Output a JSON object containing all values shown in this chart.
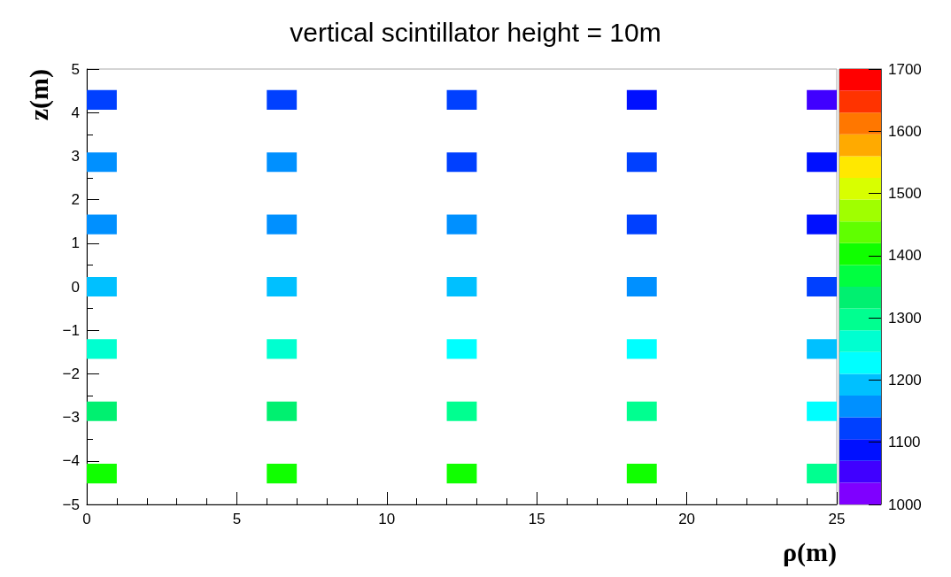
{
  "chart_data": {
    "type": "scatter",
    "title": "vertical scintillator height = 10m",
    "xlabel": "ρ(m)",
    "ylabel": "z(m)",
    "x": [
      0.5,
      6.5,
      12.5,
      18.5,
      24.5,
      0.5,
      6.5,
      12.5,
      18.5,
      24.5,
      0.5,
      6.5,
      12.5,
      18.5,
      24.5,
      0.5,
      6.5,
      12.5,
      18.5,
      24.5,
      0.5,
      6.5,
      12.5,
      18.5,
      24.5,
      0.5,
      6.5,
      12.5,
      18.5,
      24.5,
      0.5,
      6.5,
      12.5,
      18.5,
      24.5
    ],
    "values": [
      4.29,
      4.29,
      4.29,
      4.29,
      4.29,
      2.86,
      2.86,
      2.86,
      2.86,
      2.86,
      1.43,
      1.43,
      1.43,
      1.43,
      1.43,
      0,
      0,
      0,
      0,
      0,
      -1.43,
      -1.43,
      -1.43,
      -1.43,
      -1.43,
      -2.86,
      -2.86,
      -2.86,
      -2.86,
      -2.86,
      -4.29,
      -4.29,
      -4.29,
      -4.29,
      -4.29
    ],
    "cvalues": [
      1120,
      1120,
      1120,
      1090,
      1050,
      1160,
      1160,
      1120,
      1120,
      1090,
      1160,
      1160,
      1160,
      1120,
      1090,
      1190,
      1190,
      1190,
      1160,
      1120,
      1260,
      1260,
      1230,
      1230,
      1190,
      1340,
      1340,
      1300,
      1300,
      1230,
      1400,
      1400,
      1400,
      1400,
      1300
    ],
    "marker": "square",
    "grid": false,
    "xlim": [
      0,
      25
    ],
    "xticks": [
      0,
      5,
      10,
      15,
      20,
      25
    ],
    "ylim": [
      -5,
      5
    ],
    "yticks": [
      {
        "value": -5,
        "label": "−5"
      },
      {
        "value": -4,
        "label": "−4"
      },
      {
        "value": -3,
        "label": "−3"
      },
      {
        "value": -2,
        "label": "−2"
      },
      {
        "value": -1,
        "label": "−1"
      },
      0,
      1,
      2,
      3,
      4,
      5
    ],
    "clim": [
      1000,
      1700
    ],
    "cticks": [
      1000,
      1100,
      1200,
      1300,
      1400,
      1500,
      1600,
      1700
    ]
  }
}
